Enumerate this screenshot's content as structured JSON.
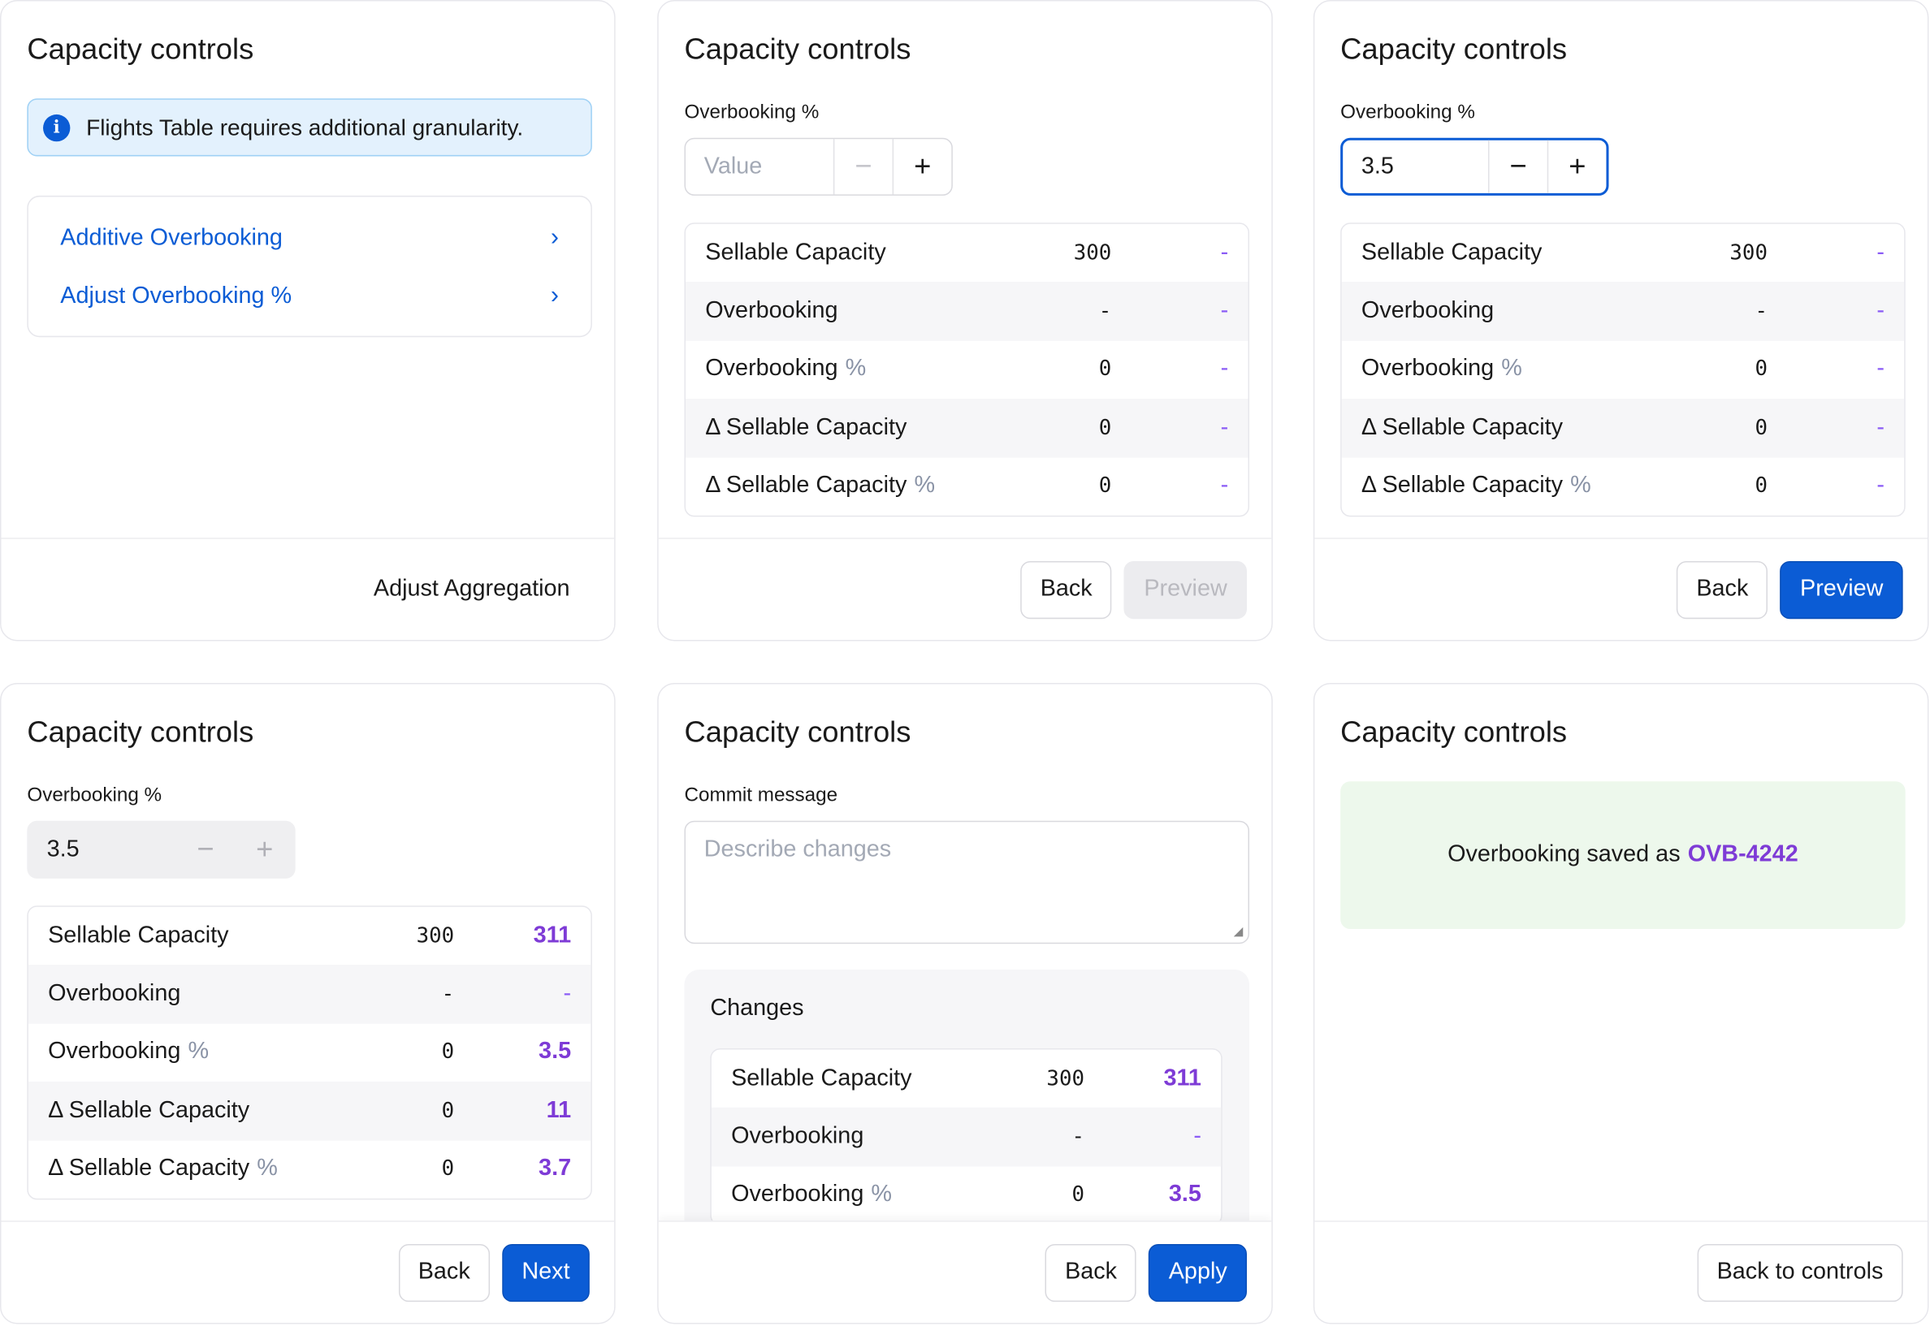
{
  "title": "Capacity controls",
  "panels": [
    {
      "alert": "Flights Table requires additional granularity.",
      "links": [
        "Additive Overbooking",
        "Adjust Overbooking %"
      ],
      "footer_button": "Adjust Aggregation"
    },
    {
      "field_label": "Overbooking %",
      "input_placeholder": "Value",
      "rows": [
        {
          "label": "Sellable Capacity",
          "suffix": "",
          "base": "300",
          "new": "-"
        },
        {
          "label": "Overbooking",
          "suffix": "",
          "base": "-",
          "new": "-"
        },
        {
          "label": "Overbooking",
          "suffix": "%",
          "base": "0",
          "new": "-"
        },
        {
          "label": "Δ Sellable Capacity",
          "suffix": "",
          "base": "0",
          "new": "-"
        },
        {
          "label": "Δ Sellable Capacity",
          "suffix": "%",
          "base": "0",
          "new": "-"
        }
      ],
      "back": "Back",
      "primary": "Preview"
    },
    {
      "field_label": "Overbooking %",
      "input_value": "3.5",
      "rows": [
        {
          "label": "Sellable Capacity",
          "suffix": "",
          "base": "300",
          "new": "-"
        },
        {
          "label": "Overbooking",
          "suffix": "",
          "base": "-",
          "new": "-"
        },
        {
          "label": "Overbooking",
          "suffix": "%",
          "base": "0",
          "new": "-"
        },
        {
          "label": "Δ Sellable Capacity",
          "suffix": "",
          "base": "0",
          "new": "-"
        },
        {
          "label": "Δ Sellable Capacity",
          "suffix": "%",
          "base": "0",
          "new": "-"
        }
      ],
      "back": "Back",
      "primary": "Preview"
    },
    {
      "field_label": "Overbooking %",
      "input_value": "3.5",
      "rows": [
        {
          "label": "Sellable Capacity",
          "suffix": "",
          "base": "300",
          "new": "311"
        },
        {
          "label": "Overbooking",
          "suffix": "",
          "base": "-",
          "new": "-"
        },
        {
          "label": "Overbooking",
          "suffix": "%",
          "base": "0",
          "new": "3.5"
        },
        {
          "label": "Δ Sellable Capacity",
          "suffix": "",
          "base": "0",
          "new": "11"
        },
        {
          "label": "Δ Sellable Capacity",
          "suffix": "%",
          "base": "0",
          "new": "3.7"
        }
      ],
      "back": "Back",
      "primary": "Next"
    },
    {
      "field_label": "Commit message",
      "textarea_placeholder": "Describe changes",
      "changes_title": "Changes",
      "rows": [
        {
          "label": "Sellable Capacity",
          "suffix": "",
          "base": "300",
          "new": "311"
        },
        {
          "label": "Overbooking",
          "suffix": "",
          "base": "-",
          "new": "-"
        },
        {
          "label": "Overbooking",
          "suffix": "%",
          "base": "0",
          "new": "3.5"
        }
      ],
      "back": "Back",
      "primary": "Apply"
    },
    {
      "success_text": "Overbooking saved as",
      "success_id": "OVB-4242",
      "footer_button": "Back to controls"
    }
  ]
}
